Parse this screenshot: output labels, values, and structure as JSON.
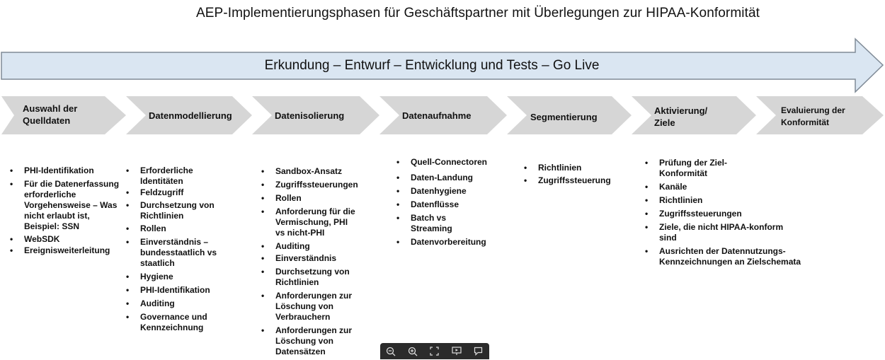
{
  "title": "AEP-Implementierungsphasen für Geschäftspartner mit Überlegungen zur HIPAA-Konformität",
  "banner": "Erkundung – Entwurf – Entwicklung und Tests – Go Live",
  "colors": {
    "banner_fill": "#dae6f2",
    "banner_stroke": "#7f8a96",
    "phase_fill": "#d6d6d6",
    "toolbar": "#2b2b2b"
  },
  "phases": [
    {
      "label_lines": [
        "Auswahl der",
        "Quelldaten"
      ],
      "items": [
        "PHI-Identifikation",
        "Für die Datenerfassung erforderliche Vorgehensweise – Was nicht erlaubt ist, Beispiel: SSN",
        "WebSDK",
        "Ereignisweiterleitung"
      ]
    },
    {
      "label_lines": [
        "Datenmodellierung"
      ],
      "items": [
        "Erforderliche Identitäten",
        "Feldzugriff",
        "Durchsetzung von Richtlinien",
        "Rollen",
        "Einverständnis – bundesstaatlich vs staatlich",
        "Hygiene",
        "PHI-Identifikation",
        "Auditing",
        "Governance und Kennzeichnung"
      ]
    },
    {
      "label_lines": [
        "Datenisolierung"
      ],
      "items": [
        "Sandbox-Ansatz",
        "Zugriffssteuerungen",
        "Rollen",
        "Anforderung für die Vermischung, PHI vs nicht-PHI",
        "Auditing",
        "Einverständnis",
        "Durchsetzung von Richtlinien",
        "Anforderungen zur Löschung von Verbrauchern",
        "Anforderungen zur Löschung von Datensätzen"
      ]
    },
    {
      "label_lines": [
        "Datenaufnahme"
      ],
      "items": [
        "Quell-Connectoren",
        "Daten-Landung",
        "Datenhygiene",
        "Datenflüsse",
        "Batch vs Streaming",
        "Datenvorbereitung"
      ]
    },
    {
      "label_lines": [
        "Segmentierung"
      ],
      "items": [
        "Richtlinien",
        "Zugriffssteuerung"
      ]
    },
    {
      "label_lines": [
        "Aktivierung/",
        "Ziele"
      ],
      "items": [
        "Prüfung der Ziel-Konformität",
        "Kanäle",
        "Richtlinien",
        "Zugriffssteuerungen",
        "Ziele, die nicht HIPAA-konform sind",
        "Ausrichten der Datennutzungs-Kennzeichnungen an Zielschemata"
      ]
    },
    {
      "label_lines": [
        "Evaluierung der",
        "Konformität"
      ],
      "items": []
    }
  ],
  "toolbar": {
    "icons": [
      "zoom-out-icon",
      "zoom-in-icon",
      "fullscreen-icon",
      "present-icon",
      "comment-icon"
    ]
  }
}
